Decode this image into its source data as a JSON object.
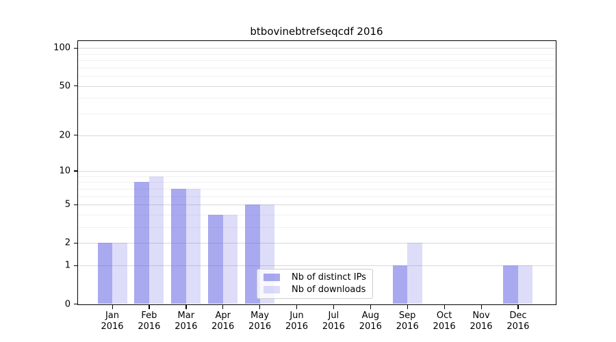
{
  "chart_data": {
    "type": "bar",
    "title": "btbovinebtrefseqcdf 2016",
    "categories": [
      "Jan",
      "Feb",
      "Mar",
      "Apr",
      "May",
      "Jun",
      "Jul",
      "Aug",
      "Sep",
      "Oct",
      "Nov",
      "Dec"
    ],
    "category_year": "2016",
    "series": [
      {
        "name": "Nb of distinct IPs",
        "color": "rgba(98,98,227,0.55)",
        "values": [
          2,
          8,
          7,
          4,
          5,
          0,
          0,
          0,
          1,
          0,
          0,
          1
        ]
      },
      {
        "name": "Nb of downloads",
        "color": "rgba(98,98,227,0.22)",
        "values": [
          2,
          9,
          7,
          4,
          5,
          0,
          0,
          0,
          2,
          0,
          0,
          1
        ]
      }
    ],
    "xlabel": "",
    "ylabel": "",
    "y_scale": "log10(1+v)",
    "y_major_ticks": [
      0,
      1,
      2,
      5,
      10,
      20,
      50,
      100
    ],
    "y_minor_gridlines": [
      3,
      4,
      6,
      7,
      8,
      9,
      30,
      40,
      60,
      70,
      80,
      90
    ],
    "ylim": [
      0,
      113.4
    ],
    "grid": "on",
    "legend_position": "lower-center-inside",
    "colors": {
      "grid_major": "#d8d8d8",
      "grid_minor": "#f0f0f0",
      "spine": "#000000",
      "text": "#000000",
      "legend_border": "#cccccc"
    }
  }
}
